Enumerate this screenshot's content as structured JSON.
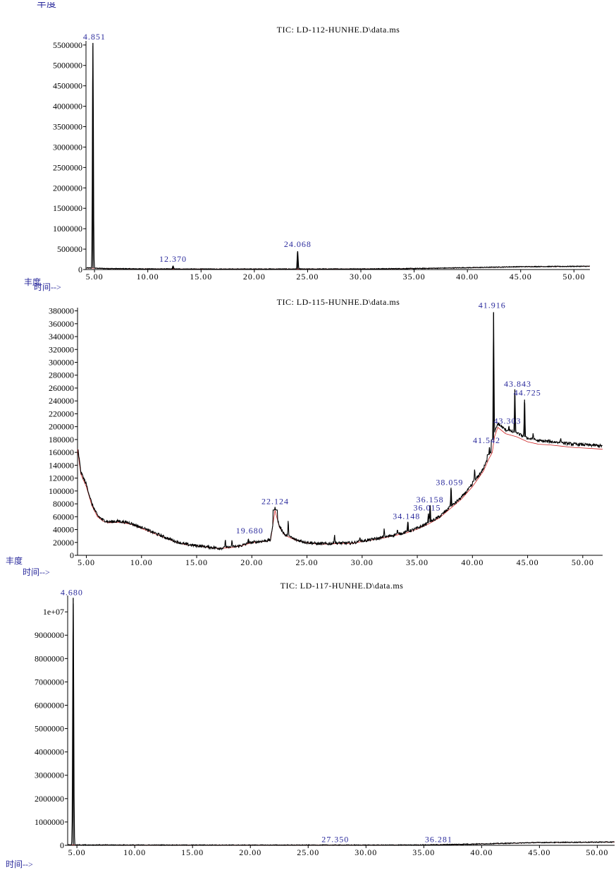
{
  "colors": {
    "trace": "#000000",
    "peak_label": "#2a2a9c",
    "baseline": "#cc2222",
    "axis_label": "#2a2a9c",
    "tick_text": "#000000",
    "background": "#ffffff"
  },
  "page_top_label": "丰度",
  "chart_data": [
    {
      "type": "line",
      "title": "TIC: LD-112-HUNHE.D\\data.ms",
      "ylabel": "丰度",
      "xlabel": "时间-->",
      "xlim": [
        4.2,
        51.5
      ],
      "ylim": [
        0,
        5600000
      ],
      "xticks": [
        "5.00",
        "10.00",
        "15.00",
        "20.00",
        "25.00",
        "30.00",
        "35.00",
        "40.00",
        "45.00",
        "50.00"
      ],
      "xtick_values": [
        5,
        10,
        15,
        20,
        25,
        30,
        35,
        40,
        45,
        50
      ],
      "yticks": [
        "0",
        "500000",
        "1000000",
        "1500000",
        "2000000",
        "2500000",
        "3000000",
        "3500000",
        "4000000",
        "4500000",
        "5000000",
        "5500000"
      ],
      "ytick_values": [
        0,
        500000,
        1000000,
        1500000,
        2000000,
        2500000,
        3000000,
        3500000,
        4000000,
        4500000,
        5000000,
        5500000
      ],
      "peaks": [
        {
          "label": "4.851",
          "x": 4.851,
          "y": 5550000
        },
        {
          "label": "12.370",
          "x": 12.37,
          "y": 90000
        },
        {
          "label": "24.068",
          "x": 24.068,
          "y": 450000
        }
      ],
      "baseline": [
        [
          4.3,
          40000
        ],
        [
          6,
          25000
        ],
        [
          10,
          15000
        ],
        [
          15,
          12000
        ],
        [
          20,
          12000
        ],
        [
          25,
          12000
        ],
        [
          30,
          15000
        ],
        [
          35,
          25000
        ],
        [
          40,
          45000
        ],
        [
          45,
          70000
        ],
        [
          51.5,
          80000
        ]
      ]
    },
    {
      "type": "line",
      "title": "TIC: LD-115-HUNHE.D\\data.ms",
      "ylabel": "丰度",
      "xlabel": "时间-->",
      "xlim": [
        4.2,
        51.8
      ],
      "ylim": [
        0,
        385000
      ],
      "xticks": [
        "5.00",
        "10.00",
        "15.00",
        "20.00",
        "25.00",
        "30.00",
        "35.00",
        "40.00",
        "45.00",
        "50.00"
      ],
      "xtick_values": [
        5,
        10,
        15,
        20,
        25,
        30,
        35,
        40,
        45,
        50
      ],
      "yticks": [
        "0",
        "20000",
        "40000",
        "60000",
        "80000",
        "100000",
        "120000",
        "140000",
        "160000",
        "180000",
        "200000",
        "220000",
        "240000",
        "260000",
        "280000",
        "300000",
        "320000",
        "340000",
        "360000",
        "380000"
      ],
      "ytick_values": [
        0,
        20000,
        40000,
        60000,
        80000,
        100000,
        120000,
        140000,
        160000,
        180000,
        200000,
        220000,
        240000,
        260000,
        280000,
        300000,
        320000,
        340000,
        360000,
        380000
      ],
      "peaks": [
        {
          "label": "19.680",
          "x": 19.68,
          "y": 25000
        },
        {
          "label": "22.124",
          "x": 22.124,
          "y": 72000
        },
        {
          "label": "34.148",
          "x": 34.148,
          "y": 52000
        },
        {
          "label": "36.015",
          "x": 36.015,
          "y": 65000
        },
        {
          "label": "36.158",
          "x": 36.158,
          "y": 78000
        },
        {
          "label": "38.059",
          "x": 38.059,
          "y": 105000
        },
        {
          "label": "41.542",
          "x": 41.542,
          "y": 168000
        },
        {
          "label": "41.916",
          "x": 41.916,
          "y": 378000
        },
        {
          "label": "43.303",
          "x": 43.303,
          "y": 200000
        },
        {
          "label": "43.843",
          "x": 43.843,
          "y": 258000
        },
        {
          "label": "44.725",
          "x": 44.725,
          "y": 242000
        }
      ],
      "baseline": [
        [
          4.2,
          170000
        ],
        [
          4.5,
          130000
        ],
        [
          5.0,
          110000
        ],
        [
          5.5,
          80000
        ],
        [
          6.0,
          62000
        ],
        [
          6.5,
          55000
        ],
        [
          7.0,
          52000
        ],
        [
          8.0,
          53000
        ],
        [
          9.0,
          50000
        ],
        [
          10.0,
          43000
        ],
        [
          11.0,
          36000
        ],
        [
          12.0,
          29000
        ],
        [
          13.0,
          22000
        ],
        [
          14.0,
          17000
        ],
        [
          15.0,
          15000
        ],
        [
          16.0,
          13000
        ],
        [
          17.0,
          11000
        ],
        [
          18.0,
          12000
        ],
        [
          19.0,
          15000
        ],
        [
          20.0,
          20000
        ],
        [
          21.0,
          22000
        ],
        [
          21.7,
          24000
        ],
        [
          22.1,
          72000
        ],
        [
          22.5,
          45000
        ],
        [
          23.0,
          32000
        ],
        [
          24.0,
          24000
        ],
        [
          25.0,
          20000
        ],
        [
          26.0,
          18000
        ],
        [
          27.0,
          18000
        ],
        [
          28.0,
          19000
        ],
        [
          29.0,
          19000
        ],
        [
          30.0,
          22000
        ],
        [
          31.0,
          25000
        ],
        [
          32.0,
          28000
        ],
        [
          33.0,
          32000
        ],
        [
          34.0,
          36000
        ],
        [
          35.0,
          42000
        ],
        [
          36.0,
          50000
        ],
        [
          37.0,
          60000
        ],
        [
          38.0,
          75000
        ],
        [
          39.0,
          90000
        ],
        [
          40.0,
          110000
        ],
        [
          41.0,
          135000
        ],
        [
          41.5,
          155000
        ],
        [
          41.8,
          165000
        ],
        [
          42.0,
          190000
        ],
        [
          42.3,
          205000
        ],
        [
          43.0,
          195000
        ],
        [
          44.0,
          190000
        ],
        [
          45.0,
          182000
        ],
        [
          46.0,
          178000
        ],
        [
          47.0,
          177000
        ],
        [
          48.0,
          175000
        ],
        [
          49.0,
          173000
        ],
        [
          50.0,
          172000
        ],
        [
          51.0,
          171000
        ],
        [
          51.8,
          170000
        ]
      ],
      "spikes": [
        {
          "x": 10.2,
          "y": 42000
        },
        {
          "x": 17.6,
          "y": 25000
        },
        {
          "x": 18.2,
          "y": 24000
        },
        {
          "x": 19.68,
          "y": 25000
        },
        {
          "x": 22.124,
          "y": 72000
        },
        {
          "x": 23.3,
          "y": 55000
        },
        {
          "x": 27.5,
          "y": 32000
        },
        {
          "x": 29.8,
          "y": 28000
        },
        {
          "x": 32.0,
          "y": 42000
        },
        {
          "x": 33.2,
          "y": 40000
        },
        {
          "x": 34.148,
          "y": 52000
        },
        {
          "x": 36.015,
          "y": 65000
        },
        {
          "x": 36.158,
          "y": 78000
        },
        {
          "x": 38.059,
          "y": 105000
        },
        {
          "x": 40.2,
          "y": 135000
        },
        {
          "x": 41.542,
          "y": 168000
        },
        {
          "x": 41.916,
          "y": 378000
        },
        {
          "x": 43.303,
          "y": 200000
        },
        {
          "x": 43.843,
          "y": 258000
        },
        {
          "x": 44.725,
          "y": 242000
        },
        {
          "x": 45.5,
          "y": 190000
        },
        {
          "x": 48.0,
          "y": 182000
        }
      ]
    },
    {
      "type": "line",
      "title": "TIC: LD-117-HUNHE.D\\data.ms",
      "ylabel": "",
      "xlabel": "时间-->",
      "xlim": [
        4.2,
        51.5
      ],
      "ylim": [
        0,
        10700000
      ],
      "xticks": [
        "5.00",
        "10.00",
        "15.00",
        "20.00",
        "25.00",
        "30.00",
        "35.00",
        "40.00",
        "45.00",
        "50.00"
      ],
      "xtick_values": [
        5,
        10,
        15,
        20,
        25,
        30,
        35,
        40,
        45,
        50
      ],
      "yticks": [
        "0",
        "1000000",
        "2000000",
        "3000000",
        "4000000",
        "5000000",
        "6000000",
        "7000000",
        "8000000",
        "9000000",
        "1e+07"
      ],
      "ytick_values": [
        0,
        1000000,
        2000000,
        3000000,
        4000000,
        5000000,
        6000000,
        7000000,
        8000000,
        9000000,
        10000000
      ],
      "peaks": [
        {
          "label": "4.680",
          "x": 4.68,
          "y": 10600000
        },
        {
          "label": "27.350",
          "x": 27.35,
          "y": 10000
        },
        {
          "label": "36.281",
          "x": 36.281,
          "y": 10000
        }
      ],
      "baseline": [
        [
          4.3,
          20000
        ],
        [
          6,
          15000
        ],
        [
          10,
          10000
        ],
        [
          20,
          8000
        ],
        [
          30,
          8000
        ],
        [
          35,
          15000
        ],
        [
          40,
          60000
        ],
        [
          45,
          120000
        ],
        [
          51.5,
          140000
        ]
      ]
    }
  ]
}
